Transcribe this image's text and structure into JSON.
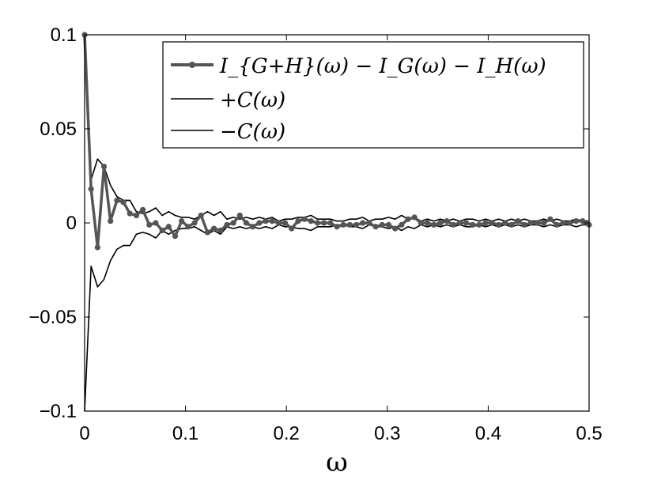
{
  "chart_data": {
    "type": "line",
    "title": "",
    "xlabel": "ω",
    "ylabel": "",
    "xlim": [
      0,
      0.5
    ],
    "ylim": [
      -0.1,
      0.1
    ],
    "xticks": [
      "0",
      "0.1",
      "0.2",
      "0.3",
      "0.4",
      "0.5"
    ],
    "xtick_values": [
      0,
      0.1,
      0.2,
      0.3,
      0.4,
      0.5
    ],
    "yticks": [
      "0.1",
      "0.05",
      "0",
      "−0.05",
      "−0.1"
    ],
    "ytick_values": [
      0.1,
      0.05,
      0,
      -0.05,
      -0.1
    ],
    "grid": false,
    "legend_position": "top-right",
    "series": [
      {
        "name": "I_{G+H}(ω) − I_G(ω) − I_H(ω)",
        "legend_label": "I_{G+H}(ω) − I_G(ω) − I_H(ω)",
        "color": "#555555",
        "marker": "dot",
        "x": [
          0,
          0.00641,
          0.01282,
          0.01923,
          0.02564,
          0.03205,
          0.03846,
          0.04487,
          0.05128,
          0.05769,
          0.0641,
          0.07051,
          0.07692,
          0.08333,
          0.08974,
          0.09615,
          0.10256,
          0.10897,
          0.11538,
          0.12179,
          0.12821,
          0.13462,
          0.14103,
          0.14744,
          0.15385,
          0.16026,
          0.16667,
          0.17308,
          0.17949,
          0.1859,
          0.19231,
          0.19872,
          0.20513,
          0.21154,
          0.21795,
          0.22436,
          0.23077,
          0.23718,
          0.24359,
          0.25,
          0.25641,
          0.26282,
          0.26923,
          0.27564,
          0.28205,
          0.28846,
          0.29487,
          0.30128,
          0.30769,
          0.3141,
          0.32051,
          0.32692,
          0.33333,
          0.33974,
          0.34615,
          0.35256,
          0.35897,
          0.36538,
          0.37179,
          0.37821,
          0.38462,
          0.39103,
          0.39744,
          0.40385,
          0.41026,
          0.41667,
          0.42308,
          0.42949,
          0.4359,
          0.44231,
          0.44872,
          0.45513,
          0.46154,
          0.46795,
          0.47436,
          0.48077,
          0.48718,
          0.49359,
          0.5
        ],
        "y": [
          0.1,
          0.018,
          -0.013,
          0.03,
          0.001,
          0.012,
          0.011,
          0.005,
          0.004,
          0.007,
          -0.001,
          0.0,
          -0.004,
          -0.002,
          -0.007,
          0.001,
          -0.002,
          0.0,
          0.004,
          -0.005,
          -0.003,
          -0.004,
          -0.001,
          0.0,
          0.004,
          0.0,
          -0.002,
          0.0,
          0.001,
          0.001,
          0.0,
          0.0,
          -0.003,
          0.001,
          0.002,
          0.001,
          0.0,
          0.0,
          0.0,
          -0.002,
          -0.001,
          -0.001,
          -0.001,
          0.0,
          0.0,
          -0.002,
          -0.001,
          -0.001,
          -0.003,
          -0.001,
          0.002,
          0.003,
          0.0,
          0.0,
          -0.001,
          0.0,
          0.001,
          -0.001,
          0.0,
          0.0,
          -0.001,
          -0.001,
          0.0,
          0.0,
          -0.001,
          0.0,
          -0.001,
          0.001,
          -0.001,
          0.0,
          0.0,
          0.0,
          0.002,
          -0.001,
          0.0,
          0.0,
          0.001,
          0.001,
          -0.001
        ]
      },
      {
        "name": "+C(ω)",
        "legend_label": "+C(ω)",
        "color": "#000000",
        "marker": "none",
        "x": [
          0,
          0.00641,
          0.01282,
          0.01923,
          0.02564,
          0.03205,
          0.03846,
          0.04487,
          0.05128,
          0.05769,
          0.0641,
          0.07051,
          0.07692,
          0.08333,
          0.08974,
          0.09615,
          0.10256,
          0.10897,
          0.11538,
          0.12179,
          0.12821,
          0.13462,
          0.14103,
          0.14744,
          0.15385,
          0.16026,
          0.16667,
          0.17308,
          0.17949,
          0.1859,
          0.19231,
          0.19872,
          0.20513,
          0.21154,
          0.21795,
          0.22436,
          0.23077,
          0.23718,
          0.24359,
          0.25,
          0.25641,
          0.26282,
          0.26923,
          0.27564,
          0.28205,
          0.28846,
          0.29487,
          0.30128,
          0.30769,
          0.3141,
          0.32051,
          0.32692,
          0.33333,
          0.33974,
          0.34615,
          0.35256,
          0.35897,
          0.36538,
          0.37179,
          0.37821,
          0.38462,
          0.39103,
          0.39744,
          0.40385,
          0.41026,
          0.41667,
          0.42308,
          0.42949,
          0.4359,
          0.44231,
          0.44872,
          0.45513,
          0.46154,
          0.46795,
          0.47436,
          0.48077,
          0.48718,
          0.49359,
          0.5
        ],
        "y": [
          0.1,
          0.023,
          0.034,
          0.03,
          0.02,
          0.014,
          0.012,
          0.012,
          0.006,
          0.005,
          0.006,
          0.008,
          0.004,
          0.006,
          0.004,
          0.003,
          0.003,
          0.002,
          0.004,
          0.006,
          0.004,
          0.006,
          0.002,
          0.003,
          0.002,
          0.003,
          0.002,
          0.003,
          0.002,
          0.003,
          0.001,
          0.002,
          0.002,
          0.003,
          0.003,
          0.004,
          0.002,
          0.002,
          0.002,
          0.001,
          0.001,
          0.002,
          0.002,
          0.003,
          0.001,
          0.002,
          0.002,
          0.003,
          0.002,
          0.004,
          0.002,
          0.003,
          0.001,
          0.002,
          0.001,
          0.002,
          0.001,
          0.002,
          0.001,
          0.002,
          0.002,
          0.001,
          0.002,
          0.001,
          0.002,
          0.001,
          0.002,
          0.001,
          0.002,
          0.001,
          0.001,
          0.002,
          0.001,
          0.002,
          0.001,
          0.001,
          0.002,
          0.001,
          0.001
        ]
      },
      {
        "name": "−C(ω)",
        "legend_label": "−C(ω)",
        "color": "#000000",
        "marker": "none",
        "x": [
          0,
          0.00641,
          0.01282,
          0.01923,
          0.02564,
          0.03205,
          0.03846,
          0.04487,
          0.05128,
          0.05769,
          0.0641,
          0.07051,
          0.07692,
          0.08333,
          0.08974,
          0.09615,
          0.10256,
          0.10897,
          0.11538,
          0.12179,
          0.12821,
          0.13462,
          0.14103,
          0.14744,
          0.15385,
          0.16026,
          0.16667,
          0.17308,
          0.17949,
          0.1859,
          0.19231,
          0.19872,
          0.20513,
          0.21154,
          0.21795,
          0.22436,
          0.23077,
          0.23718,
          0.24359,
          0.25,
          0.25641,
          0.26282,
          0.26923,
          0.27564,
          0.28205,
          0.28846,
          0.29487,
          0.30128,
          0.30769,
          0.3141,
          0.32051,
          0.32692,
          0.33333,
          0.33974,
          0.34615,
          0.35256,
          0.35897,
          0.36538,
          0.37179,
          0.37821,
          0.38462,
          0.39103,
          0.39744,
          0.40385,
          0.41026,
          0.41667,
          0.42308,
          0.42949,
          0.4359,
          0.44231,
          0.44872,
          0.45513,
          0.46154,
          0.46795,
          0.47436,
          0.48077,
          0.48718,
          0.49359,
          0.5
        ],
        "y": [
          -0.1,
          -0.023,
          -0.034,
          -0.03,
          -0.02,
          -0.014,
          -0.012,
          -0.012,
          -0.006,
          -0.005,
          -0.006,
          -0.008,
          -0.004,
          -0.006,
          -0.004,
          -0.003,
          -0.003,
          -0.002,
          -0.004,
          -0.006,
          -0.004,
          -0.006,
          -0.002,
          -0.003,
          -0.002,
          -0.003,
          -0.002,
          -0.003,
          -0.002,
          -0.003,
          -0.001,
          -0.002,
          -0.002,
          -0.003,
          -0.003,
          -0.004,
          -0.002,
          -0.002,
          -0.002,
          -0.001,
          -0.001,
          -0.002,
          -0.002,
          -0.003,
          -0.001,
          -0.002,
          -0.002,
          -0.003,
          -0.002,
          -0.004,
          -0.002,
          -0.003,
          -0.001,
          -0.002,
          -0.001,
          -0.002,
          -0.001,
          -0.002,
          -0.001,
          -0.002,
          -0.002,
          -0.001,
          -0.002,
          -0.001,
          -0.002,
          -0.001,
          -0.002,
          -0.001,
          -0.002,
          -0.001,
          -0.001,
          -0.002,
          -0.001,
          -0.002,
          -0.001,
          -0.001,
          -0.002,
          -0.001,
          -0.001
        ]
      }
    ]
  }
}
